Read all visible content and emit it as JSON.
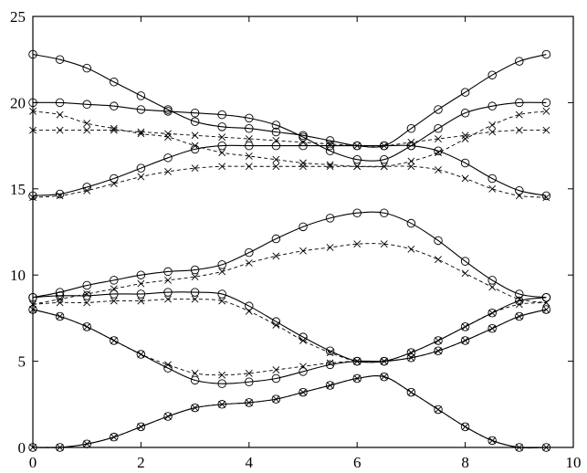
{
  "chart_data": {
    "type": "line",
    "title": "",
    "xlabel": "",
    "ylabel": "",
    "xlim": [
      0,
      10
    ],
    "ylim": [
      0,
      25
    ],
    "xticks": [
      0,
      2,
      4,
      6,
      8,
      10
    ],
    "yticks": [
      0,
      5,
      10,
      15,
      20,
      25
    ],
    "xtick_labels": [
      "0",
      "2",
      "4",
      "6",
      "8",
      "10"
    ],
    "ytick_labels": [
      "0",
      "5",
      "10",
      "15",
      "20",
      "25"
    ],
    "grid": false,
    "legend": "none",
    "marker_color": "#000000",
    "series": [
      {
        "style": "solid",
        "marker": "circle",
        "x": [
          0,
          0.5,
          1,
          1.5,
          2,
          2.5,
          3,
          3.5,
          4,
          4.5,
          5,
          5.5,
          6,
          6.5,
          7,
          7.5,
          8,
          8.5,
          9,
          9.5
        ],
        "y": [
          0,
          0,
          0.2,
          0.6,
          1.2,
          1.8,
          2.3,
          2.5,
          2.6,
          2.8,
          3.2,
          3.6,
          4.0,
          4.1,
          3.2,
          2.2,
          1.2,
          0.4,
          0,
          0
        ]
      },
      {
        "style": "dashed",
        "marker": "x",
        "x": [
          0,
          0.5,
          1,
          1.5,
          2,
          2.5,
          3,
          3.5,
          4,
          4.5,
          5,
          5.5,
          6,
          6.5,
          7,
          7.5,
          8,
          8.5,
          9,
          9.5
        ],
        "y": [
          0,
          0,
          0.2,
          0.6,
          1.2,
          1.8,
          2.3,
          2.5,
          2.6,
          2.8,
          3.2,
          3.6,
          4.0,
          4.1,
          3.2,
          2.2,
          1.2,
          0.4,
          0,
          0
        ]
      },
      {
        "style": "solid",
        "marker": "circle",
        "x": [
          0,
          0.5,
          1,
          1.5,
          2,
          2.5,
          3,
          3.5,
          4,
          4.5,
          5,
          5.5,
          6,
          6.5,
          7,
          7.5,
          8,
          8.5,
          9,
          9.5
        ],
        "y": [
          8.0,
          7.6,
          7.0,
          6.2,
          5.4,
          4.6,
          3.9,
          3.7,
          3.8,
          4.0,
          4.4,
          4.8,
          5.0,
          5.0,
          5.2,
          5.6,
          6.2,
          6.9,
          7.6,
          8.0
        ]
      },
      {
        "style": "dashed",
        "marker": "x",
        "x": [
          0,
          0.5,
          1,
          1.5,
          2,
          2.5,
          3,
          3.5,
          4,
          4.5,
          5,
          5.5,
          6,
          6.5,
          7,
          7.5,
          8,
          8.5,
          9,
          9.5
        ],
        "y": [
          8.0,
          7.6,
          7.0,
          6.2,
          5.4,
          4.8,
          4.3,
          4.2,
          4.3,
          4.5,
          4.7,
          4.9,
          5.0,
          5.0,
          5.2,
          5.6,
          6.2,
          6.9,
          7.6,
          8.0
        ]
      },
      {
        "style": "solid",
        "marker": "circle",
        "x": [
          0,
          0.5,
          1,
          1.5,
          2,
          2.5,
          3,
          3.5,
          4,
          4.5,
          5,
          5.5,
          6,
          6.5,
          7,
          7.5,
          8,
          8.5,
          9,
          9.5
        ],
        "y": [
          8.7,
          8.8,
          8.8,
          8.9,
          8.9,
          9.0,
          9.0,
          8.9,
          8.2,
          7.3,
          6.4,
          5.6,
          5.0,
          5.0,
          5.5,
          6.2,
          7.0,
          7.8,
          8.5,
          8.7
        ]
      },
      {
        "style": "dashed",
        "marker": "x",
        "x": [
          0,
          0.5,
          1,
          1.5,
          2,
          2.5,
          3,
          3.5,
          4,
          4.5,
          5,
          5.5,
          6,
          6.5,
          7,
          7.5,
          8,
          8.5,
          9,
          9.5
        ],
        "y": [
          8.3,
          8.4,
          8.4,
          8.5,
          8.5,
          8.6,
          8.6,
          8.5,
          7.9,
          7.1,
          6.2,
          5.5,
          5.0,
          5.0,
          5.5,
          6.2,
          7.0,
          7.8,
          8.3,
          8.4
        ]
      },
      {
        "style": "solid",
        "marker": "circle",
        "x": [
          0,
          0.5,
          1,
          1.5,
          2,
          2.5,
          3,
          3.5,
          4,
          4.5,
          5,
          5.5,
          6,
          6.5,
          7,
          7.5,
          8,
          8.5,
          9,
          9.5
        ],
        "y": [
          8.7,
          9.0,
          9.4,
          9.7,
          10.0,
          10.2,
          10.3,
          10.6,
          11.3,
          12.1,
          12.8,
          13.3,
          13.6,
          13.6,
          13.0,
          12.0,
          10.8,
          9.7,
          8.9,
          8.7
        ]
      },
      {
        "style": "dashed",
        "marker": "x",
        "x": [
          0,
          0.5,
          1,
          1.5,
          2,
          2.5,
          3,
          3.5,
          4,
          4.5,
          5,
          5.5,
          6,
          6.5,
          7,
          7.5,
          8,
          8.5,
          9,
          9.5
        ],
        "y": [
          8.3,
          8.6,
          8.9,
          9.2,
          9.5,
          9.7,
          9.9,
          10.2,
          10.7,
          11.1,
          11.4,
          11.6,
          11.8,
          11.8,
          11.5,
          10.9,
          10.1,
          9.3,
          8.6,
          8.4
        ]
      },
      {
        "style": "solid",
        "marker": "circle",
        "x": [
          0,
          0.5,
          1,
          1.5,
          2,
          2.5,
          3,
          3.5,
          4,
          4.5,
          5,
          5.5,
          6,
          6.5,
          7,
          7.5,
          8,
          8.5,
          9,
          9.5
        ],
        "y": [
          14.6,
          14.7,
          15.1,
          15.6,
          16.2,
          16.8,
          17.3,
          17.5,
          17.5,
          17.5,
          17.5,
          17.5,
          17.5,
          17.5,
          17.5,
          17.2,
          16.5,
          15.6,
          14.9,
          14.6
        ]
      },
      {
        "style": "dashed",
        "marker": "x",
        "x": [
          0,
          0.5,
          1,
          1.5,
          2,
          2.5,
          3,
          3.5,
          4,
          4.5,
          5,
          5.5,
          6,
          6.5,
          7,
          7.5,
          8,
          8.5,
          9,
          9.5
        ],
        "y": [
          14.5,
          14.6,
          14.9,
          15.3,
          15.7,
          16.0,
          16.2,
          16.3,
          16.3,
          16.3,
          16.3,
          16.3,
          16.3,
          16.3,
          16.3,
          16.1,
          15.6,
          15.0,
          14.6,
          14.5
        ]
      },
      {
        "style": "solid",
        "marker": "circle",
        "x": [
          0,
          0.5,
          1,
          1.5,
          2,
          2.5,
          3,
          3.5,
          4,
          4.5,
          5,
          5.5,
          6,
          6.5,
          7,
          7.5,
          8,
          8.5,
          9,
          9.5
        ],
        "y": [
          20.0,
          20.0,
          19.9,
          19.8,
          19.6,
          19.5,
          19.4,
          19.3,
          19.1,
          18.7,
          18.0,
          17.2,
          16.7,
          16.7,
          17.5,
          18.5,
          19.4,
          19.8,
          20.0,
          20.0
        ]
      },
      {
        "style": "dashed",
        "marker": "x",
        "x": [
          0,
          0.5,
          1,
          1.5,
          2,
          2.5,
          3,
          3.5,
          4,
          4.5,
          5,
          5.5,
          6,
          6.5,
          7,
          7.5,
          8,
          8.5,
          9,
          9.5
        ],
        "y": [
          19.5,
          19.3,
          18.8,
          18.5,
          18.2,
          18.0,
          17.5,
          17.1,
          16.9,
          16.7,
          16.5,
          16.4,
          16.3,
          16.3,
          16.6,
          17.1,
          17.9,
          18.7,
          19.3,
          19.5
        ]
      },
      {
        "style": "solid",
        "marker": "circle",
        "x": [
          0,
          0.5,
          1,
          1.5,
          2,
          2.5,
          3,
          3.5,
          4,
          4.5,
          5,
          5.5,
          6,
          6.5,
          7,
          7.5,
          8,
          8.5,
          9,
          9.5
        ],
        "y": [
          22.8,
          22.5,
          22.0,
          21.2,
          20.4,
          19.6,
          18.9,
          18.6,
          18.5,
          18.3,
          18.1,
          17.8,
          17.5,
          17.5,
          18.5,
          19.6,
          20.6,
          21.6,
          22.4,
          22.8
        ]
      },
      {
        "style": "dashed",
        "marker": "x",
        "x": [
          0,
          0.5,
          1,
          1.5,
          2,
          2.5,
          3,
          3.5,
          4,
          4.5,
          5,
          5.5,
          6,
          6.5,
          7,
          7.5,
          8,
          8.5,
          9,
          9.5
        ],
        "y": [
          18.4,
          18.4,
          18.4,
          18.4,
          18.3,
          18.2,
          18.1,
          18.0,
          17.9,
          17.8,
          17.7,
          17.6,
          17.5,
          17.5,
          17.7,
          17.9,
          18.1,
          18.3,
          18.4,
          18.4
        ]
      }
    ]
  }
}
